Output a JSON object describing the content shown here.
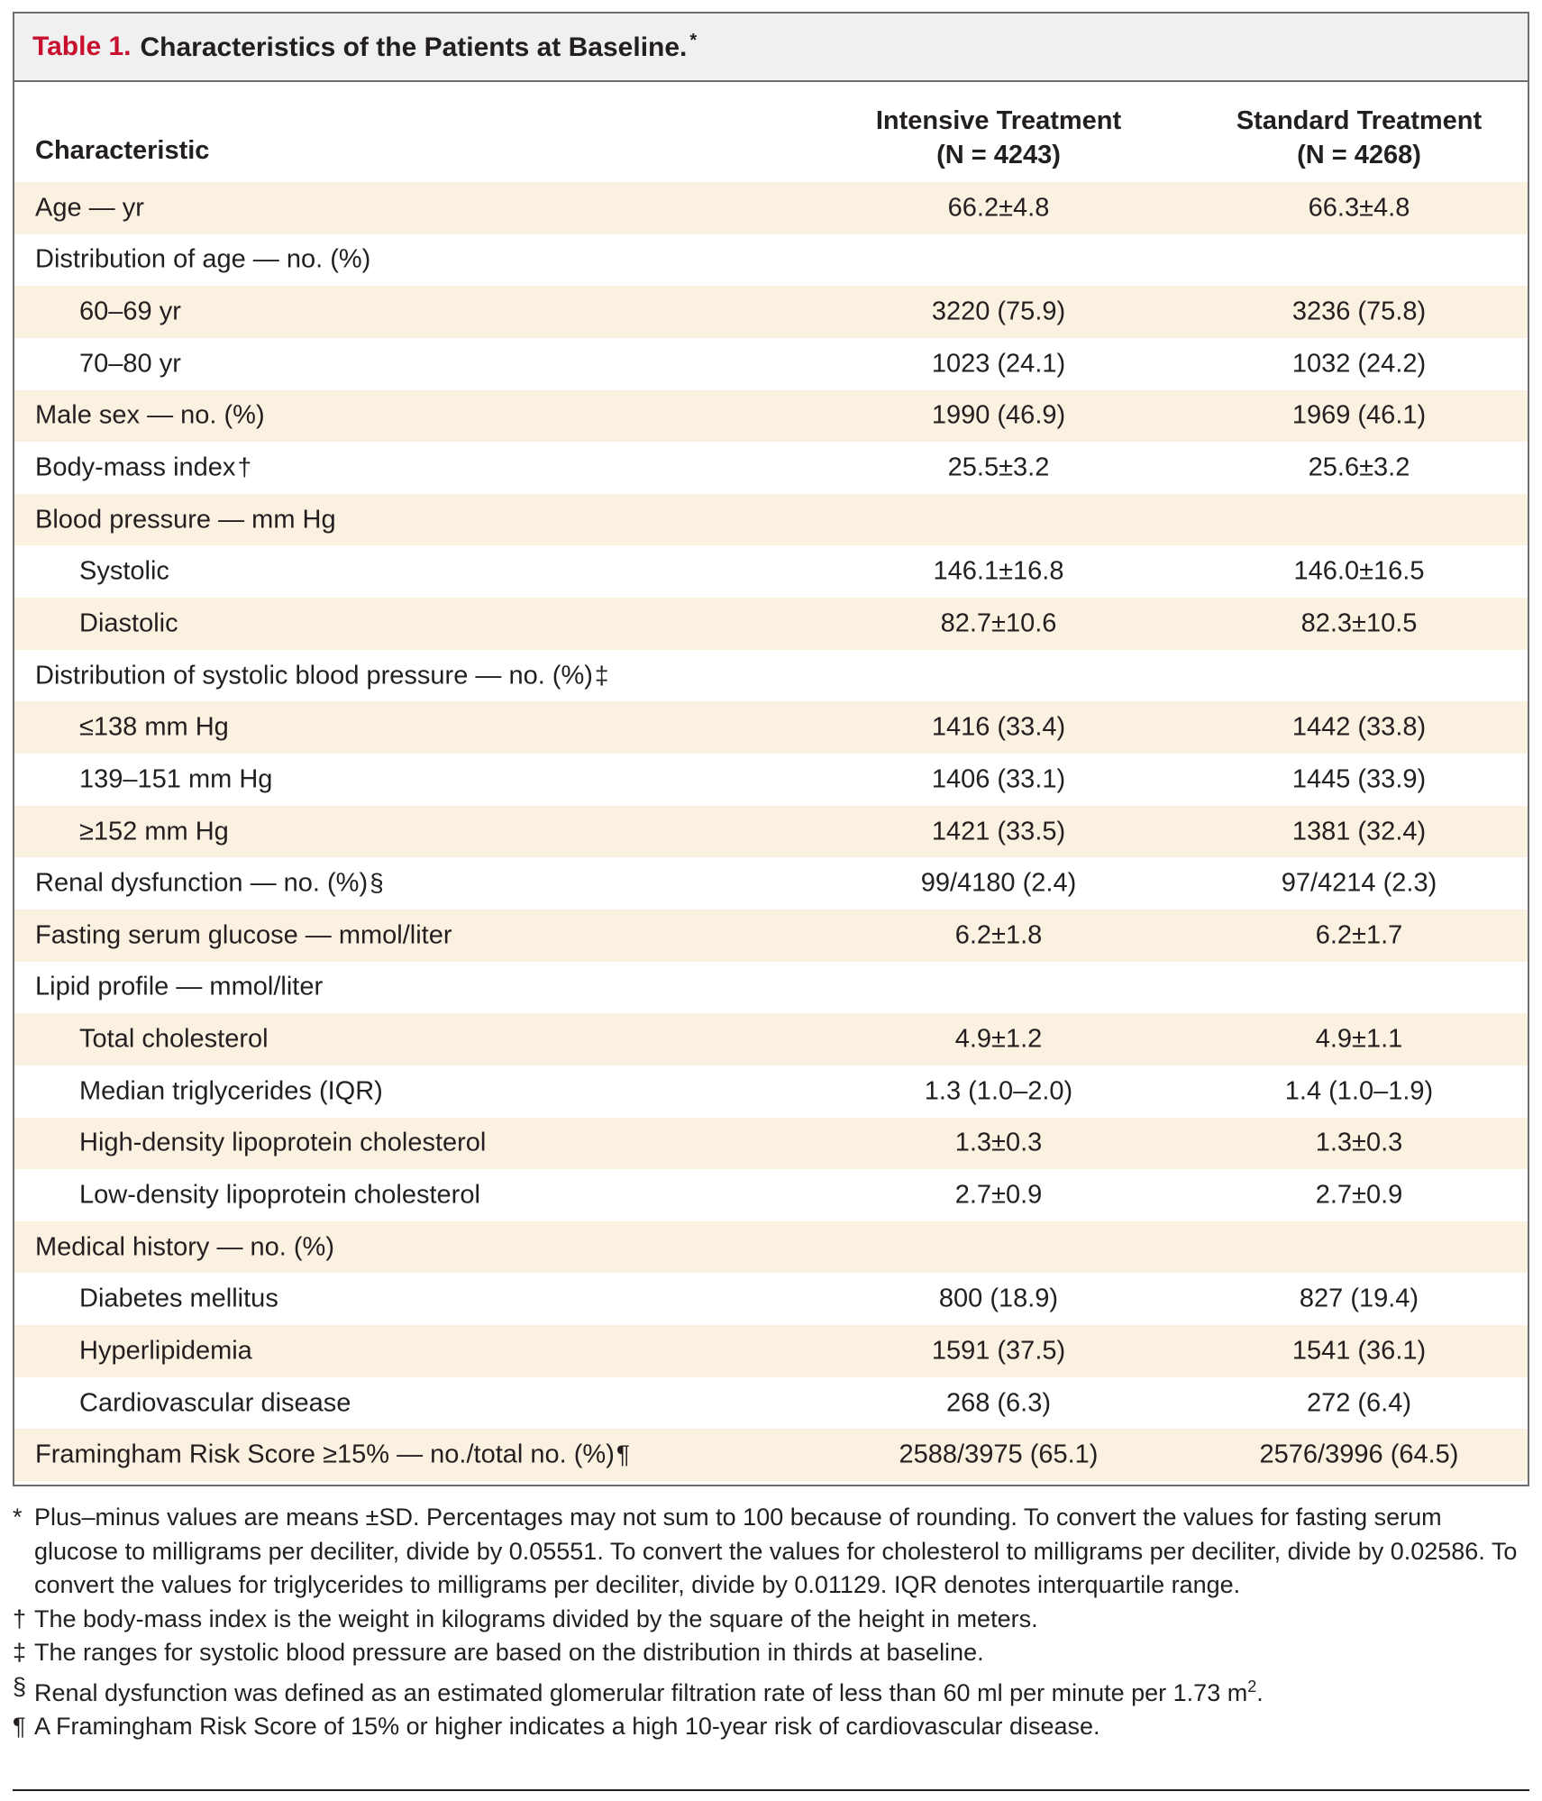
{
  "table": {
    "label": "Table 1.",
    "title": "Characteristics of the Patients at Baseline.",
    "title_mark": "*",
    "colors": {
      "label": "#c8102e",
      "title_bar_bg": "#f0f0f0",
      "shade": "#fbf1e1",
      "border": "#6d6e71"
    },
    "header": {
      "characteristic": "Characteristic",
      "intensive_line1": "Intensive Treatment",
      "intensive_line2": "(N = 4243)",
      "standard_line1": "Standard Treatment",
      "standard_line2": "(N = 4268)"
    },
    "rows": [
      {
        "label": "Age — yr",
        "mark": "",
        "intensive": "66.2±4.8",
        "standard": "66.3±4.8"
      },
      {
        "label": "Distribution of age — no. (%)",
        "mark": "",
        "intensive": "",
        "standard": ""
      },
      {
        "label": "60–69 yr",
        "mark": "",
        "intensive": "3220 (75.9)",
        "standard": "3236 (75.8)"
      },
      {
        "label": "70–80 yr",
        "mark": "",
        "intensive": "1023 (24.1)",
        "standard": "1032 (24.2)"
      },
      {
        "label": "Male sex — no. (%)",
        "mark": "",
        "intensive": "1990 (46.9)",
        "standard": "1969 (46.1)"
      },
      {
        "label": "Body-mass index",
        "mark": "†",
        "intensive": "25.5±3.2",
        "standard": "25.6±3.2"
      },
      {
        "label": "Blood pressure — mm Hg",
        "mark": "",
        "intensive": "",
        "standard": ""
      },
      {
        "label": "Systolic",
        "mark": "",
        "intensive": "146.1±16.8",
        "standard": "146.0±16.5"
      },
      {
        "label": "Diastolic",
        "mark": "",
        "intensive": "82.7±10.6",
        "standard": "82.3±10.5"
      },
      {
        "label": "Distribution of systolic blood pressure — no. (%)",
        "mark": "‡",
        "intensive": "",
        "standard": ""
      },
      {
        "label": "≤138 mm Hg",
        "mark": "",
        "intensive": "1416 (33.4)",
        "standard": "1442 (33.8)"
      },
      {
        "label": "139–151 mm Hg",
        "mark": "",
        "intensive": "1406 (33.1)",
        "standard": "1445 (33.9)"
      },
      {
        "label": "≥152 mm Hg",
        "mark": "",
        "intensive": "1421 (33.5)",
        "standard": "1381 (32.4)"
      },
      {
        "label": "Renal dysfunction — no. (%)",
        "mark": "§",
        "intensive": "99/4180 (2.4)",
        "standard": "97/4214 (2.3)"
      },
      {
        "label": "Fasting serum glucose — mmol/liter",
        "mark": "",
        "intensive": "6.2±1.8",
        "standard": "6.2±1.7"
      },
      {
        "label": "Lipid profile — mmol/liter",
        "mark": "",
        "intensive": "",
        "standard": ""
      },
      {
        "label": "Total cholesterol",
        "mark": "",
        "intensive": "4.9±1.2",
        "standard": "4.9±1.1"
      },
      {
        "label": "Median triglycerides (IQR)",
        "mark": "",
        "intensive": "1.3 (1.0–2.0)",
        "standard": "1.4 (1.0–1.9)"
      },
      {
        "label": "High-density lipoprotein cholesterol",
        "mark": "",
        "intensive": "1.3±0.3",
        "standard": "1.3±0.3"
      },
      {
        "label": "Low-density lipoprotein cholesterol",
        "mark": "",
        "intensive": "2.7±0.9",
        "standard": "2.7±0.9"
      },
      {
        "label": "Medical history — no. (%)",
        "mark": "",
        "intensive": "",
        "standard": ""
      },
      {
        "label": "Diabetes mellitus",
        "mark": "",
        "intensive": "800 (18.9)",
        "standard": "827 (19.4)"
      },
      {
        "label": "Hyperlipidemia",
        "mark": "",
        "intensive": "1591 (37.5)",
        "standard": "1541 (36.1)"
      },
      {
        "label": "Cardiovascular disease",
        "mark": "",
        "intensive": "268 (6.3)",
        "standard": "272 (6.4)"
      },
      {
        "label": "Framingham Risk Score ≥15% — no./total no. (%)",
        "mark": "¶",
        "intensive": "2588/3975 (65.1)",
        "standard": "2576/3996 (64.5)"
      }
    ]
  },
  "footnotes": [
    {
      "mark": "*",
      "text": "Plus–minus values are means ±SD. Percentages may not sum to 100 because of rounding. To convert the values for fasting serum glucose to milligrams per deciliter, divide by 0.05551. To convert the values for cholesterol to milligrams per deciliter, divide by 0.02586. To convert the values for triglycerides to milligrams per deciliter, divide by 0.01129. IQR denotes interquartile range."
    },
    {
      "mark": "†",
      "text": "The body-mass index is the weight in kilograms divided by the square of the height in meters."
    },
    {
      "mark": "‡",
      "text": "The ranges for systolic blood pressure are based on the distribution in thirds at baseline."
    },
    {
      "mark": "§",
      "text": "Renal dysfunction was defined as an estimated glomerular filtration rate of less than 60 ml per minute per 1.73 m",
      "sup": "2",
      "tail": "."
    },
    {
      "mark": "¶",
      "text": "A Framingham Risk Score of 15% or higher indicates a high 10-year risk of cardiovascular disease."
    }
  ]
}
